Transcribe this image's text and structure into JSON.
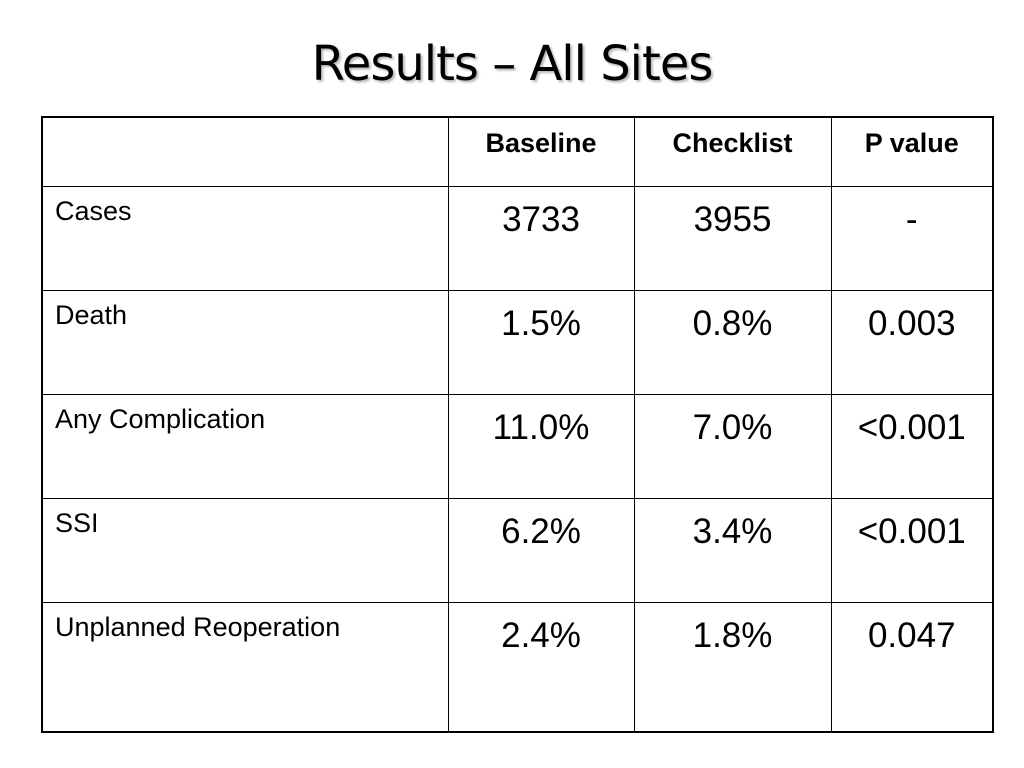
{
  "slide": {
    "title": "Results – All Sites"
  },
  "table": {
    "headers": [
      "",
      "Baseline",
      "Checklist",
      "P value"
    ],
    "rows": [
      {
        "label": "Cases",
        "baseline": "3733",
        "checklist": "3955",
        "p_value": "-"
      },
      {
        "label": "Death",
        "baseline": "1.5%",
        "checklist": "0.8%",
        "p_value": "0.003"
      },
      {
        "label": "Any Complication",
        "baseline": "11.0%",
        "checklist": "7.0%",
        "p_value": "<0.001"
      },
      {
        "label": "SSI",
        "baseline": "6.2%",
        "checklist": "3.4%",
        "p_value": "<0.001"
      },
      {
        "label": "Unplanned Reoperation",
        "baseline": "2.4%",
        "checklist": "1.8%",
        "p_value": "0.047"
      }
    ]
  }
}
